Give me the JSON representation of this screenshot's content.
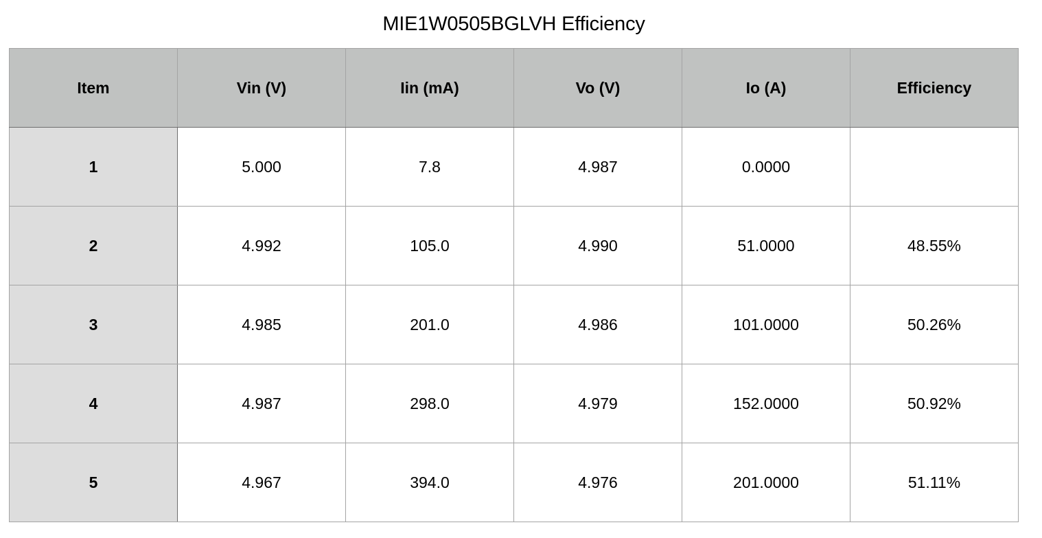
{
  "title": "MIE1W0505BGLVH Efficiency",
  "table": {
    "headers": [
      "Item",
      "Vin (V)",
      "Iin (mA)",
      "Vo (V)",
      "Io (A)",
      "Efficiency"
    ],
    "rows": [
      [
        "1",
        "5.000",
        "7.8",
        "4.987",
        "0.0000",
        ""
      ],
      [
        "2",
        "4.992",
        "105.0",
        "4.990",
        "51.0000",
        "48.55%"
      ],
      [
        "3",
        "4.985",
        "201.0",
        "4.986",
        "101.0000",
        "50.26%"
      ],
      [
        "4",
        "4.987",
        "298.0",
        "4.979",
        "152.0000",
        "50.92%"
      ],
      [
        "5",
        "4.967",
        "394.0",
        "4.976",
        "201.0000",
        "51.11%"
      ]
    ]
  }
}
